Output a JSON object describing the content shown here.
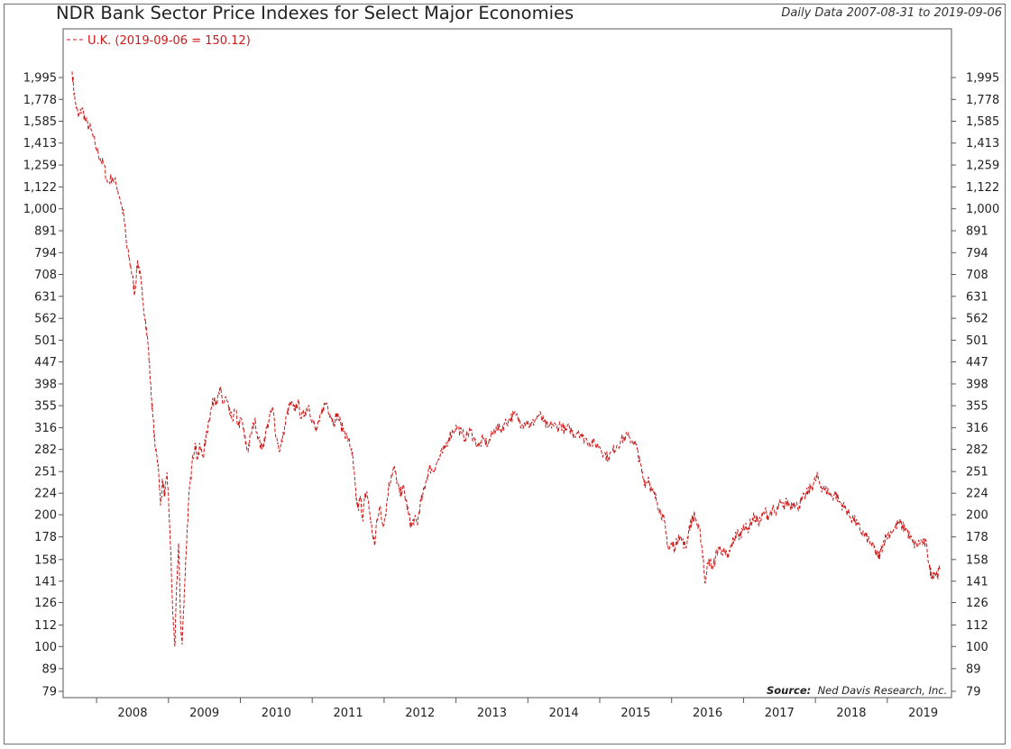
{
  "chart_data": {
    "type": "line",
    "title": "NDR Bank Sector Price Indexes for Select Major Economies",
    "subtitle": "Daily Data 2007-08-31 to 2019-09-06",
    "source_label": "Source:",
    "source_value": "Ned Davis Research, Inc.",
    "y_scale": "log",
    "ylim": [
      77,
      2120
    ],
    "xlim": [
      2007.66,
      2019.73
    ],
    "grid": false,
    "legend_position": "top-left",
    "y_ticks": [
      79,
      89,
      100,
      112,
      126,
      141,
      158,
      178,
      200,
      224,
      251,
      282,
      316,
      355,
      398,
      447,
      501,
      562,
      631,
      708,
      794,
      891,
      1000,
      1122,
      1259,
      1413,
      1585,
      1778,
      1995
    ],
    "y_tick_labels": [
      "79",
      "89",
      "100",
      "112",
      "126",
      "141",
      "158",
      "178",
      "200",
      "224",
      "251",
      "282",
      "316",
      "355",
      "398",
      "447",
      "501",
      "562",
      "631",
      "708",
      "794",
      "891",
      "1,000",
      "1,122",
      "1,259",
      "1,413",
      "1,585",
      "1,778",
      "1,995"
    ],
    "x_labels": [
      "2008",
      "2009",
      "2010",
      "2011",
      "2012",
      "2013",
      "2014",
      "2015",
      "2016",
      "2017",
      "2018",
      "2019"
    ],
    "series": [
      {
        "name": "U.K. (2019-09-06 = 150.12)",
        "color": "#cc1a1a",
        "style": "dashed",
        "points": [
          [
            2007.66,
            2060
          ],
          [
            2007.7,
            1760
          ],
          [
            2007.75,
            1620
          ],
          [
            2007.8,
            1700
          ],
          [
            2007.85,
            1580
          ],
          [
            2007.92,
            1520
          ],
          [
            2007.98,
            1400
          ],
          [
            2008.05,
            1300
          ],
          [
            2008.1,
            1260
          ],
          [
            2008.15,
            1150
          ],
          [
            2008.22,
            1180
          ],
          [
            2008.28,
            1130
          ],
          [
            2008.33,
            1050
          ],
          [
            2008.38,
            960
          ],
          [
            2008.42,
            820
          ],
          [
            2008.46,
            760
          ],
          [
            2008.5,
            700
          ],
          [
            2008.53,
            640
          ],
          [
            2008.57,
            760
          ],
          [
            2008.6,
            720
          ],
          [
            2008.64,
            620
          ],
          [
            2008.68,
            560
          ],
          [
            2008.72,
            480
          ],
          [
            2008.75,
            400
          ],
          [
            2008.78,
            340
          ],
          [
            2008.82,
            280
          ],
          [
            2008.86,
            260
          ],
          [
            2008.89,
            210
          ],
          [
            2008.92,
            240
          ],
          [
            2008.95,
            220
          ],
          [
            2008.98,
            250
          ],
          [
            2009.02,
            185
          ],
          [
            2009.06,
            118
          ],
          [
            2009.09,
            100
          ],
          [
            2009.11,
            132
          ],
          [
            2009.14,
            172
          ],
          [
            2009.17,
            112
          ],
          [
            2009.19,
            101
          ],
          [
            2009.22,
            132
          ],
          [
            2009.25,
            170
          ],
          [
            2009.28,
            214
          ],
          [
            2009.31,
            242
          ],
          [
            2009.34,
            272
          ],
          [
            2009.37,
            292
          ],
          [
            2009.4,
            270
          ],
          [
            2009.44,
            286
          ],
          [
            2009.48,
            272
          ],
          [
            2009.52,
            298
          ],
          [
            2009.56,
            328
          ],
          [
            2009.6,
            352
          ],
          [
            2009.64,
            372
          ],
          [
            2009.68,
            362
          ],
          [
            2009.72,
            386
          ],
          [
            2009.76,
            358
          ],
          [
            2009.8,
            370
          ],
          [
            2009.84,
            346
          ],
          [
            2009.88,
            330
          ],
          [
            2009.93,
            346
          ],
          [
            2009.97,
            320
          ],
          [
            2010.02,
            330
          ],
          [
            2010.06,
            300
          ],
          [
            2010.1,
            280
          ],
          [
            2010.15,
            306
          ],
          [
            2010.2,
            330
          ],
          [
            2010.25,
            300
          ],
          [
            2010.3,
            282
          ],
          [
            2010.35,
            306
          ],
          [
            2010.4,
            330
          ],
          [
            2010.45,
            350
          ],
          [
            2010.5,
            302
          ],
          [
            2010.55,
            280
          ],
          [
            2010.6,
            306
          ],
          [
            2010.65,
            340
          ],
          [
            2010.7,
            360
          ],
          [
            2010.75,
            346
          ],
          [
            2010.8,
            362
          ],
          [
            2010.85,
            332
          ],
          [
            2010.9,
            344
          ],
          [
            2010.95,
            356
          ],
          [
            2011.0,
            330
          ],
          [
            2011.05,
            310
          ],
          [
            2011.1,
            326
          ],
          [
            2011.15,
            352
          ],
          [
            2011.2,
            360
          ],
          [
            2011.25,
            340
          ],
          [
            2011.3,
            325
          ],
          [
            2011.35,
            340
          ],
          [
            2011.4,
            320
          ],
          [
            2011.45,
            310
          ],
          [
            2011.5,
            296
          ],
          [
            2011.55,
            282
          ],
          [
            2011.58,
            252
          ],
          [
            2011.61,
            218
          ],
          [
            2011.64,
            206
          ],
          [
            2011.67,
            220
          ],
          [
            2011.7,
            195
          ],
          [
            2011.73,
            218
          ],
          [
            2011.76,
            226
          ],
          [
            2011.8,
            202
          ],
          [
            2011.84,
            180
          ],
          [
            2011.87,
            170
          ],
          [
            2011.9,
            196
          ],
          [
            2011.94,
            208
          ],
          [
            2011.98,
            190
          ],
          [
            2012.02,
            200
          ],
          [
            2012.06,
            230
          ],
          [
            2012.1,
            246
          ],
          [
            2012.14,
            256
          ],
          [
            2012.18,
            238
          ],
          [
            2012.22,
            222
          ],
          [
            2012.26,
            232
          ],
          [
            2012.3,
            218
          ],
          [
            2012.34,
            200
          ],
          [
            2012.38,
            188
          ],
          [
            2012.42,
            196
          ],
          [
            2012.46,
            190
          ],
          [
            2012.5,
            210
          ],
          [
            2012.54,
            222
          ],
          [
            2012.58,
            238
          ],
          [
            2012.63,
            256
          ],
          [
            2012.68,
            252
          ],
          [
            2012.73,
            262
          ],
          [
            2012.78,
            272
          ],
          [
            2012.84,
            282
          ],
          [
            2012.9,
            300
          ],
          [
            2012.96,
            312
          ],
          [
            2013.02,
            318
          ],
          [
            2013.08,
            306
          ],
          [
            2013.14,
            300
          ],
          [
            2013.2,
            312
          ],
          [
            2013.26,
            296
          ],
          [
            2013.32,
            286
          ],
          [
            2013.38,
            298
          ],
          [
            2013.44,
            290
          ],
          [
            2013.5,
            304
          ],
          [
            2013.56,
            318
          ],
          [
            2013.62,
            312
          ],
          [
            2013.68,
            324
          ],
          [
            2013.74,
            330
          ],
          [
            2013.8,
            338
          ],
          [
            2013.86,
            332
          ],
          [
            2013.92,
            322
          ],
          [
            2013.98,
            328
          ],
          [
            2014.04,
            318
          ],
          [
            2014.1,
            330
          ],
          [
            2014.16,
            338
          ],
          [
            2014.22,
            326
          ],
          [
            2014.28,
            316
          ],
          [
            2014.34,
            322
          ],
          [
            2014.4,
            316
          ],
          [
            2014.46,
            322
          ],
          [
            2014.52,
            310
          ],
          [
            2014.58,
            316
          ],
          [
            2014.64,
            305
          ],
          [
            2014.7,
            312
          ],
          [
            2014.76,
            300
          ],
          [
            2014.82,
            296
          ],
          [
            2014.88,
            292
          ],
          [
            2014.94,
            290
          ],
          [
            2015.0,
            286
          ],
          [
            2015.06,
            276
          ],
          [
            2015.12,
            270
          ],
          [
            2015.18,
            280
          ],
          [
            2015.24,
            288
          ],
          [
            2015.3,
            296
          ],
          [
            2015.36,
            302
          ],
          [
            2015.42,
            298
          ],
          [
            2015.48,
            294
          ],
          [
            2015.52,
            282
          ],
          [
            2015.56,
            262
          ],
          [
            2015.6,
            244
          ],
          [
            2015.64,
            236
          ],
          [
            2015.68,
            244
          ],
          [
            2015.72,
            226
          ],
          [
            2015.76,
            222
          ],
          [
            2015.8,
            214
          ],
          [
            2015.84,
            204
          ],
          [
            2015.88,
            198
          ],
          [
            2015.92,
            182
          ],
          [
            2015.96,
            166
          ],
          [
            2016.0,
            172
          ],
          [
            2016.05,
            168
          ],
          [
            2016.1,
            180
          ],
          [
            2016.15,
            174
          ],
          [
            2016.2,
            168
          ],
          [
            2016.24,
            186
          ],
          [
            2016.28,
            194
          ],
          [
            2016.32,
            200
          ],
          [
            2016.36,
            188
          ],
          [
            2016.4,
            180
          ],
          [
            2016.44,
            160
          ],
          [
            2016.46,
            140
          ],
          [
            2016.49,
            150
          ],
          [
            2016.53,
            158
          ],
          [
            2016.57,
            150
          ],
          [
            2016.61,
            160
          ],
          [
            2016.65,
            168
          ],
          [
            2016.7,
            166
          ],
          [
            2016.75,
            162
          ],
          [
            2016.79,
            160
          ],
          [
            2016.83,
            170
          ],
          [
            2016.87,
            176
          ],
          [
            2016.91,
            182
          ],
          [
            2016.95,
            178
          ],
          [
            2017.0,
            190
          ],
          [
            2017.05,
            184
          ],
          [
            2017.1,
            192
          ],
          [
            2017.15,
            198
          ],
          [
            2017.2,
            192
          ],
          [
            2017.25,
            196
          ],
          [
            2017.3,
            204
          ],
          [
            2017.35,
            198
          ],
          [
            2017.4,
            206
          ],
          [
            2017.45,
            200
          ],
          [
            2017.5,
            212
          ],
          [
            2017.55,
            208
          ],
          [
            2017.6,
            214
          ],
          [
            2017.65,
            210
          ],
          [
            2017.7,
            214
          ],
          [
            2017.75,
            208
          ],
          [
            2017.8,
            214
          ],
          [
            2017.85,
            220
          ],
          [
            2017.9,
            226
          ],
          [
            2017.95,
            232
          ],
          [
            2018.0,
            240
          ],
          [
            2018.03,
            244
          ],
          [
            2018.08,
            232
          ],
          [
            2018.13,
            228
          ],
          [
            2018.18,
            226
          ],
          [
            2018.23,
            220
          ],
          [
            2018.28,
            224
          ],
          [
            2018.33,
            214
          ],
          [
            2018.38,
            210
          ],
          [
            2018.43,
            206
          ],
          [
            2018.48,
            198
          ],
          [
            2018.53,
            196
          ],
          [
            2018.58,
            190
          ],
          [
            2018.63,
            184
          ],
          [
            2018.68,
            180
          ],
          [
            2018.73,
            176
          ],
          [
            2018.78,
            170
          ],
          [
            2018.83,
            166
          ],
          [
            2018.87,
            160
          ],
          [
            2018.9,
            163
          ],
          [
            2018.94,
            172
          ],
          [
            2018.98,
            178
          ],
          [
            2019.04,
            182
          ],
          [
            2019.1,
            186
          ],
          [
            2019.16,
            192
          ],
          [
            2019.21,
            188
          ],
          [
            2019.26,
            186
          ],
          [
            2019.31,
            178
          ],
          [
            2019.36,
            172
          ],
          [
            2019.41,
            170
          ],
          [
            2019.46,
            174
          ],
          [
            2019.51,
            172
          ],
          [
            2019.55,
            170
          ],
          [
            2019.59,
            150
          ],
          [
            2019.62,
            146
          ],
          [
            2019.66,
            148
          ],
          [
            2019.7,
            146
          ],
          [
            2019.73,
            150
          ]
        ]
      }
    ]
  }
}
